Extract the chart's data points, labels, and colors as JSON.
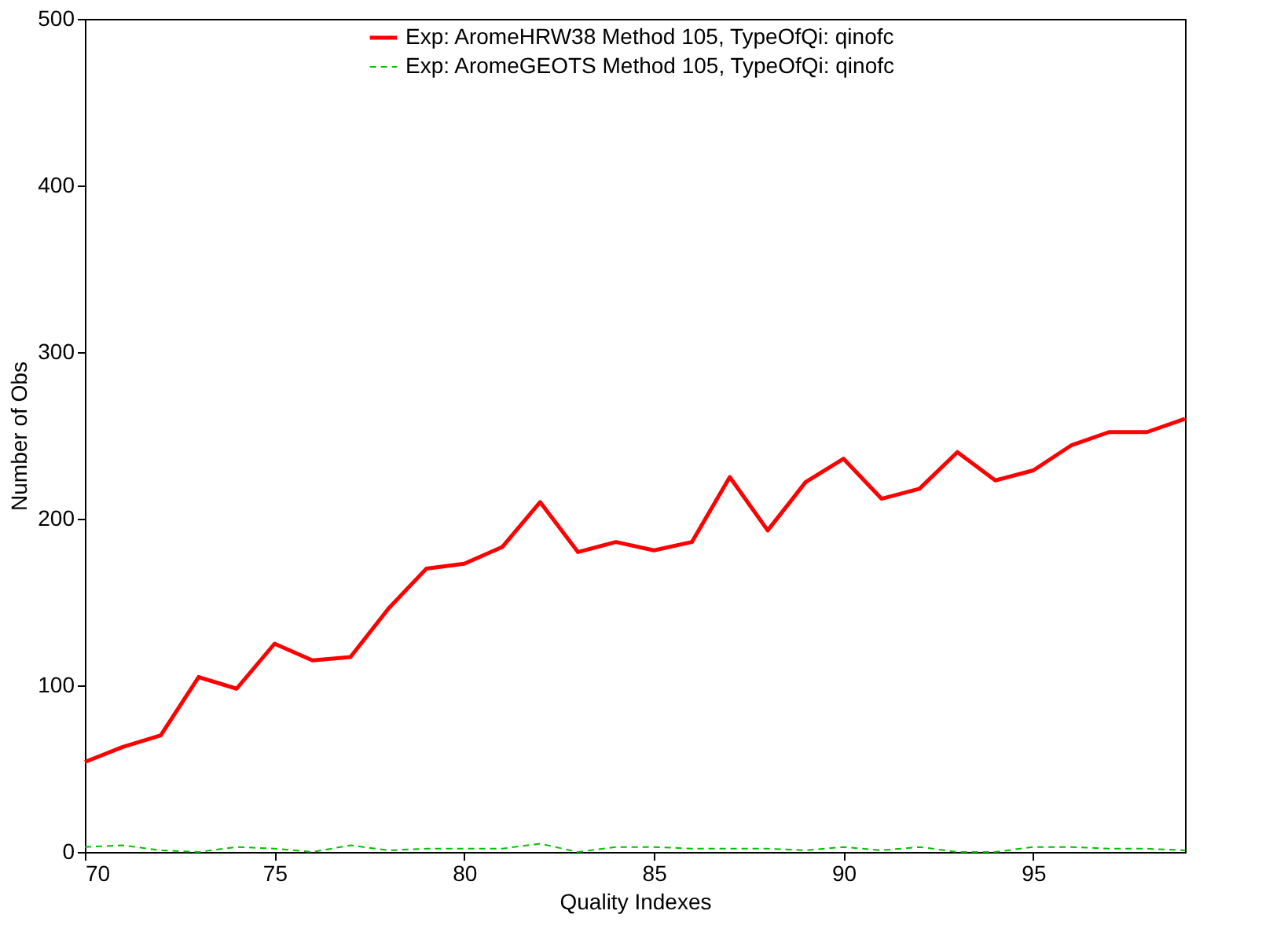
{
  "chart_data": {
    "type": "line",
    "xlabel": "Quality Indexes",
    "ylabel": "Number of Obs",
    "x": [
      70,
      71,
      72,
      73,
      74,
      75,
      76,
      77,
      78,
      79,
      80,
      81,
      82,
      83,
      84,
      85,
      86,
      87,
      88,
      89,
      90,
      91,
      92,
      93,
      94,
      95,
      96,
      97,
      98,
      99
    ],
    "series": [
      {
        "name": "Exp: AromeHRW38 Method 105, TypeOfQi: qinofc",
        "color": "#ff0000",
        "line_style": "solid",
        "values": [
          54,
          63,
          70,
          105,
          98,
          125,
          115,
          117,
          146,
          170,
          173,
          183,
          210,
          180,
          186,
          181,
          186,
          225,
          193,
          222,
          236,
          212,
          218,
          240,
          223,
          229,
          244,
          252,
          252,
          260
        ]
      },
      {
        "name": "Exp: AromeGEOTS Method 105, TypeOfQi: qinofc",
        "color": "#00c000",
        "line_style": "dashed",
        "values": [
          3,
          4,
          1,
          0,
          3,
          2,
          0,
          4,
          1,
          2,
          2,
          2,
          5,
          0,
          3,
          3,
          2,
          2,
          2,
          1,
          3,
          1,
          3,
          0,
          0,
          3,
          3,
          2,
          2,
          1
        ]
      }
    ],
    "xlim": [
      70,
      99
    ],
    "xticks": [
      70,
      75,
      80,
      85,
      90,
      95
    ],
    "ylim": [
      0,
      500
    ],
    "yticks": [
      0,
      100,
      200,
      300,
      400,
      500
    ],
    "grid": false,
    "legend": "top",
    "marker": "none"
  }
}
